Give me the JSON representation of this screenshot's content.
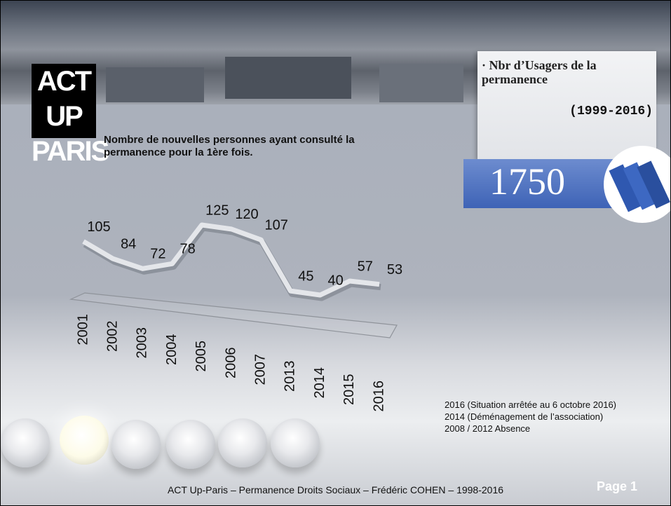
{
  "chart_data": {
    "type": "line",
    "subtitle": "Nombre de nouvelles personnes ayant consulté la permanence pour la 1ère fois.",
    "categories": [
      "2001",
      "2002",
      "2003",
      "2004",
      "2005",
      "2006",
      "2007",
      "2013",
      "2014",
      "2015",
      "2016"
    ],
    "values": [
      105,
      84,
      72,
      78,
      125,
      120,
      107,
      45,
      40,
      57,
      53
    ],
    "color": "#e4e6ea"
  },
  "logo": [
    "ACT UP",
    "PARIS"
  ],
  "panel": {
    "title": "· Nbr d’Usagers de la permanence",
    "period": "(1999-2016)",
    "total": 1750
  },
  "notes": [
    "2016 (Situation arrêtée au 6 octobre 2016)",
    "2014 (Déménagement de l’association)",
    "2008 / 2012 Absence"
  ],
  "footer": "ACT Up-Paris  –  Permanence Droits Sociaux  –  Frédéric COHEN – 1998-2016",
  "page": "Page 1"
}
